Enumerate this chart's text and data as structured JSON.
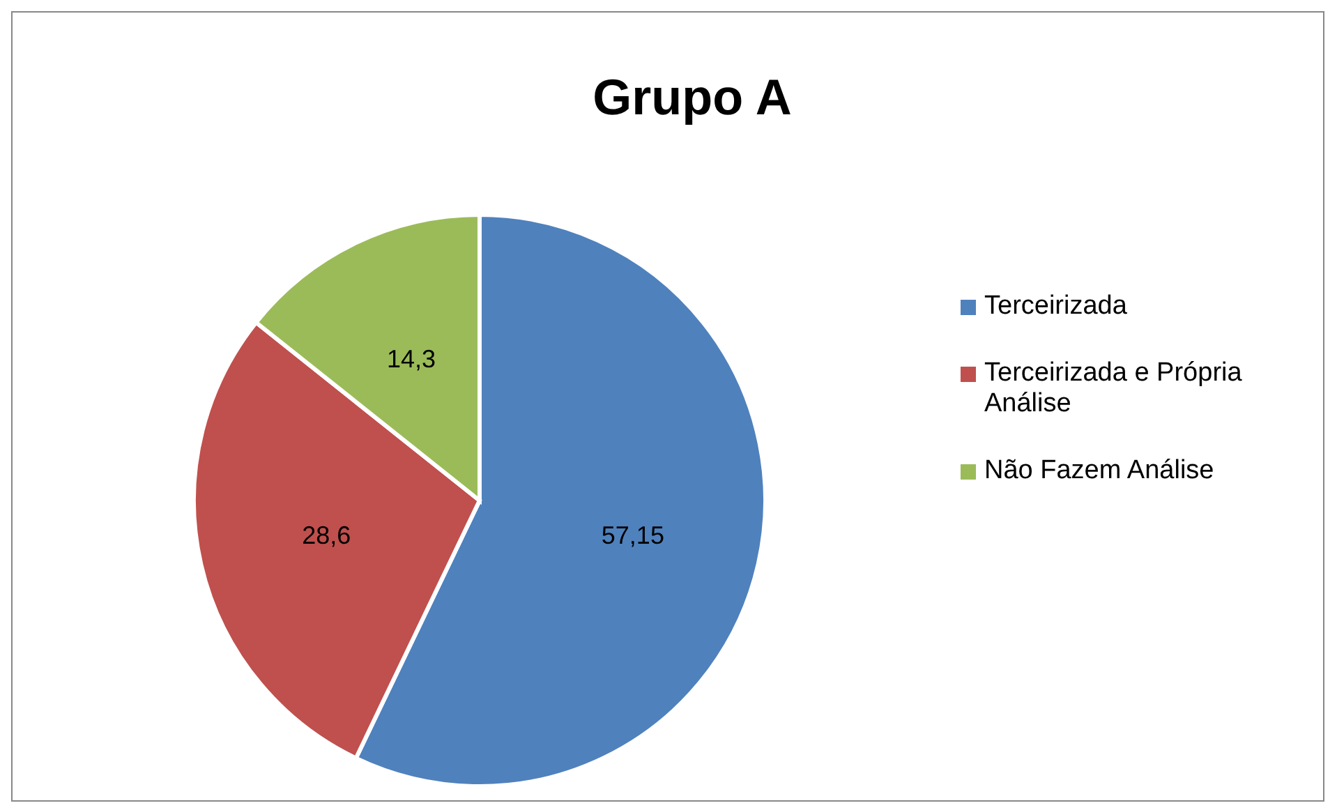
{
  "chart_data": {
    "type": "pie",
    "title": "Grupo A",
    "categories": [
      "Terceirizada",
      "Terceirizada e Própria Análise",
      "Não Fazem Análise"
    ],
    "values": [
      57.15,
      28.6,
      14.3
    ],
    "colors": [
      "#4f81bd",
      "#c0504d",
      "#9bbb59"
    ],
    "value_labels": [
      "57,15",
      "28,6",
      "14,3"
    ],
    "legend": "right"
  }
}
